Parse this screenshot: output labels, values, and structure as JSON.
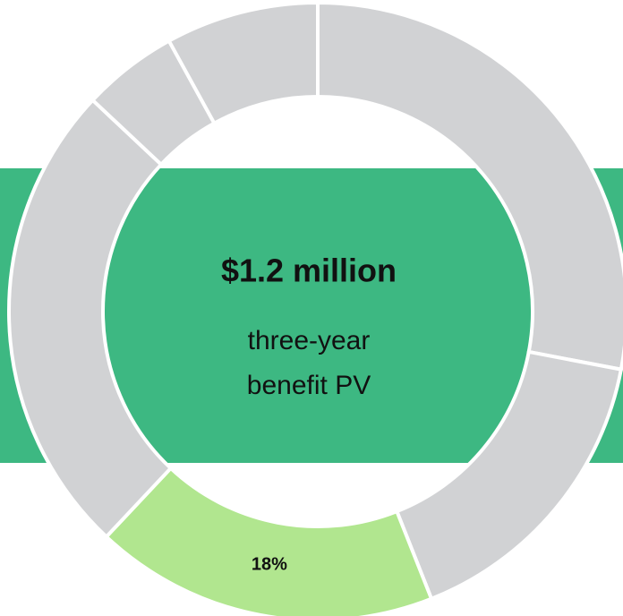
{
  "chart_data": {
    "type": "donut",
    "values": [
      28,
      16,
      18,
      25,
      5,
      8
    ],
    "value_labels": [
      null,
      null,
      "18%",
      null,
      null,
      null
    ],
    "colors": [
      "#d1d2d4",
      "#d1d2d4",
      "#b1e68f",
      "#d1d2d4",
      "#d1d2d4",
      "#d1d2d4"
    ],
    "band_color": "#3db882",
    "center_title": "$1.2 million",
    "center_lines": [
      "three-year",
      "benefit PV"
    ]
  }
}
